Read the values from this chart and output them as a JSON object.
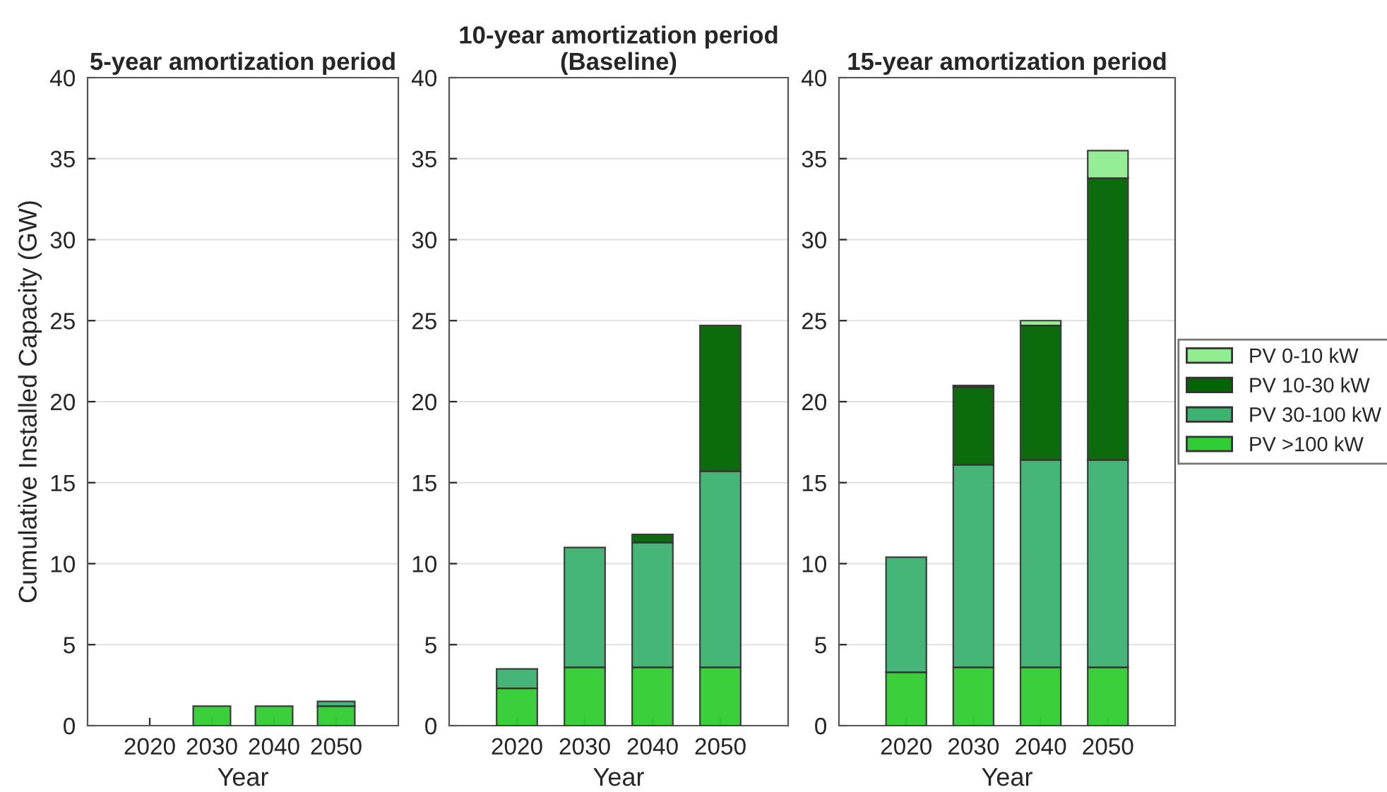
{
  "chart_data": [
    {
      "type": "bar",
      "title": "5-year amortization period",
      "xlabel": "Year",
      "ylabel": "Cumulative Installed Capacity (GW)",
      "categories": [
        "2020",
        "2030",
        "2040",
        "2050"
      ],
      "stacked": true,
      "ylim": [
        0,
        40
      ],
      "yticks": [
        0,
        5,
        10,
        15,
        20,
        25,
        30,
        35,
        40
      ],
      "grid": "y",
      "series": [
        {
          "color": "#32cd32",
          "values": [
            null,
            1.2,
            1.2,
            1.2
          ]
        },
        {
          "color": "#3cb371",
          "values": [
            null,
            null,
            null,
            0.3
          ]
        }
      ]
    },
    {
      "type": "bar",
      "title": "10-year amortization period\n(Baseline)",
      "xlabel": "Year",
      "categories": [
        "2020",
        "2030",
        "2040",
        "2050"
      ],
      "stacked": true,
      "ylim": [
        0,
        40
      ],
      "yticks": [
        0,
        5,
        10,
        15,
        20,
        25,
        30,
        35,
        40
      ],
      "grid": "y",
      "series": [
        {
          "color": "#32cd32",
          "values": [
            2.3,
            3.6,
            3.6,
            3.6
          ]
        },
        {
          "color": "#3cb371",
          "values": [
            1.2,
            7.4,
            7.7,
            12.1
          ]
        },
        {
          "color": "#006400",
          "values": [
            null,
            null,
            0.5,
            9.0
          ]
        }
      ]
    },
    {
      "type": "bar",
      "title": "15-year amortization period",
      "xlabel": "Year",
      "categories": [
        "2020",
        "2030",
        "2040",
        "2050"
      ],
      "stacked": true,
      "ylim": [
        0,
        40
      ],
      "yticks": [
        0,
        5,
        10,
        15,
        20,
        25,
        30,
        35,
        40
      ],
      "grid": "y",
      "legend": "right",
      "series": [
        {
          "name": "PV >100 kW",
          "color": "#32cd32",
          "values": [
            3.3,
            3.6,
            3.6,
            3.6
          ]
        },
        {
          "name": "PV 30-100 kW",
          "color": "#3cb371",
          "values": [
            7.1,
            12.5,
            12.8,
            12.8
          ]
        },
        {
          "name": "PV 10-30 kW",
          "color": "#006400",
          "values": [
            null,
            4.8,
            8.3,
            17.4
          ]
        },
        {
          "name": "PV 0-10 kW",
          "color": "#90ee90",
          "values": [
            null,
            0.1,
            0.3,
            1.7
          ]
        }
      ]
    }
  ]
}
